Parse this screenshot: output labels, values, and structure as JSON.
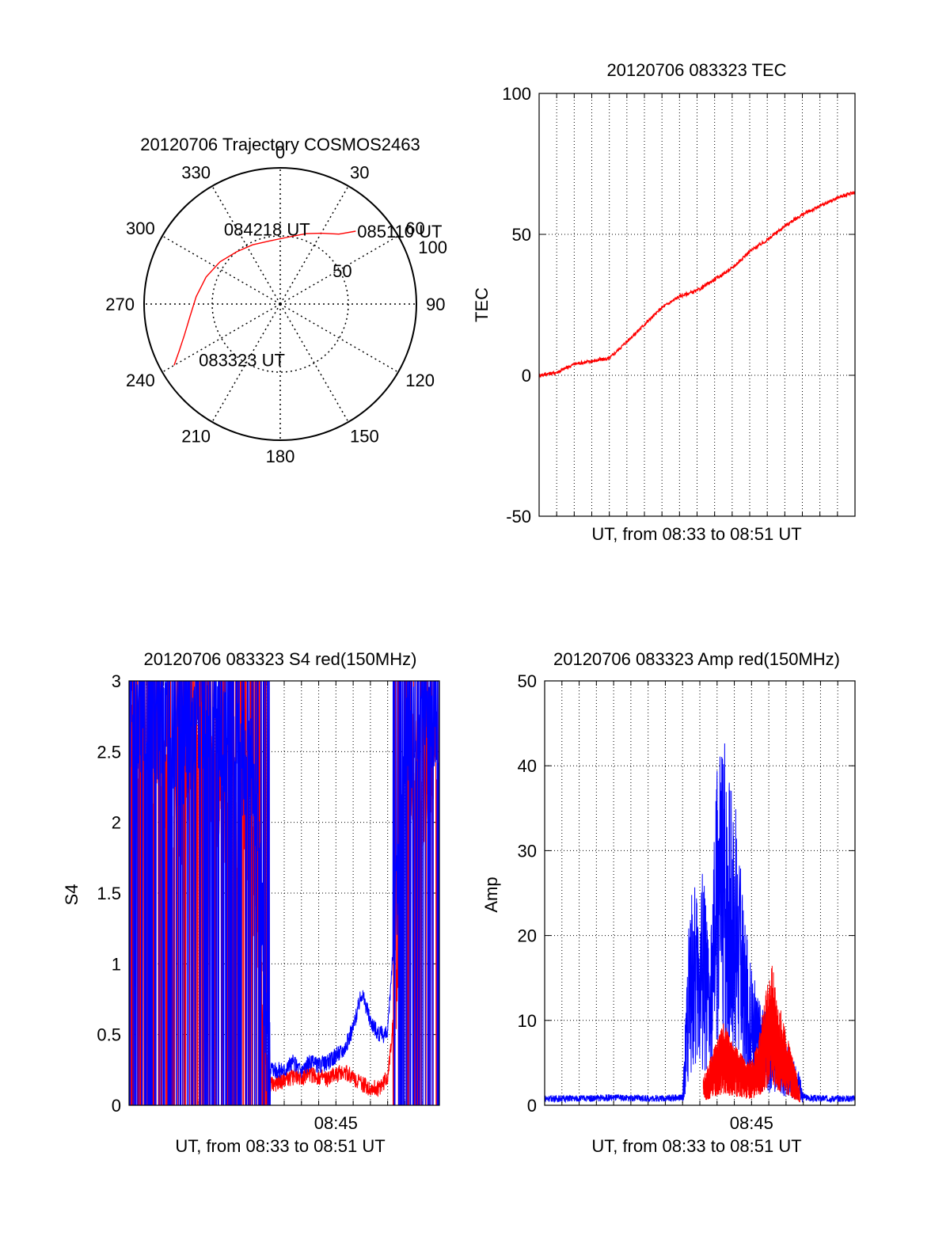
{
  "colors": {
    "red": "#ff0000",
    "blue": "#0000ff",
    "axis": "#000000",
    "grid": "#000000"
  },
  "chart_data": [
    {
      "type": "polar",
      "title": "20120706 Trajectory COSMOS2463",
      "azimuth_labels": [
        "0",
        "30",
        "60",
        "90",
        "120",
        "150",
        "180",
        "210",
        "240",
        "270",
        "300",
        "330"
      ],
      "radial_labels": [
        "50",
        "100"
      ],
      "grid": true,
      "series": [
        {
          "color": "red",
          "points": [
            {
              "az": 240,
              "el": 10
            },
            {
              "az": 245,
              "el": 18
            },
            {
              "az": 252,
              "el": 26
            },
            {
              "az": 262,
              "el": 33
            },
            {
              "az": 275,
              "el": 38
            },
            {
              "az": 290,
              "el": 42
            },
            {
              "az": 305,
              "el": 46
            },
            {
              "az": 320,
              "el": 50
            },
            {
              "az": 335,
              "el": 52
            },
            {
              "az": 350,
              "el": 53
            },
            {
              "az": 5,
              "el": 51
            },
            {
              "az": 20,
              "el": 45
            },
            {
              "az": 30,
              "el": 40
            },
            {
              "az": 40,
              "el": 33
            },
            {
              "az": 46,
              "el": 23
            }
          ]
        }
      ],
      "annotations": [
        {
          "text": "085110 UT",
          "az": 46,
          "el": 23
        },
        {
          "text": "084218 UT",
          "az": 345,
          "el": 75
        },
        {
          "text": "083323 UT",
          "az": 233,
          "el": 28
        }
      ]
    },
    {
      "type": "line",
      "title": "20120706 083323 TEC",
      "xlabel": "UT, from 08:33 to 08:51 UT",
      "ylabel": "TEC",
      "xlim": [
        0,
        18
      ],
      "ylim": [
        -50,
        100
      ],
      "yticks": [
        "-50",
        "0",
        "50",
        "100"
      ],
      "grid": true,
      "series": [
        {
          "color": "red",
          "x": [
            0,
            1,
            2,
            3,
            4,
            5,
            6,
            7,
            8,
            9,
            10,
            11,
            12,
            13,
            14,
            15,
            16,
            17,
            18
          ],
          "y": [
            0,
            1,
            4,
            5,
            6,
            12,
            18,
            24,
            28,
            30,
            34,
            38,
            44,
            48,
            53,
            57,
            60,
            63,
            65
          ]
        }
      ]
    },
    {
      "type": "line",
      "title": "20120706 083323 S4 red(150MHz)",
      "xlabel": "UT, from 08:33 to 08:51 UT",
      "ylabel": "S4",
      "xlim": [
        0,
        18
      ],
      "ylim": [
        0,
        3
      ],
      "yticks": [
        "0",
        "0.5",
        "1",
        "1.5",
        "2",
        "2.5",
        "3"
      ],
      "xticks": [
        {
          "x": 12,
          "label": "08:45"
        }
      ],
      "grid": true,
      "series": [
        {
          "color": "red",
          "x": [
            0,
            1,
            2,
            3,
            4,
            5,
            6,
            7,
            7.5,
            8,
            8.5,
            9,
            9.5,
            10,
            10.5,
            11,
            11.5,
            12,
            12.5,
            13,
            13.5,
            14,
            14.5,
            15,
            15.5,
            16,
            16.5,
            17,
            17.5,
            18
          ],
          "y": [
            2.6,
            2.4,
            2.2,
            2.0,
            2.4,
            2.2,
            2.0,
            1.8,
            1.3,
            0.15,
            0.15,
            0.18,
            0.2,
            0.2,
            0.22,
            0.2,
            0.18,
            0.22,
            0.24,
            0.2,
            0.15,
            0.12,
            0.12,
            0.2,
            0.8,
            2.4,
            2.4,
            2.2,
            2.3,
            2.4
          ]
        },
        {
          "color": "blue",
          "x": [
            0,
            1,
            2,
            3,
            4,
            5,
            6,
            7,
            7.5,
            8,
            8.5,
            9,
            9.5,
            10,
            10.5,
            11,
            11.5,
            12,
            12.5,
            13,
            13.5,
            14,
            14.5,
            15,
            15.5,
            16,
            16.5,
            17,
            17.5,
            18
          ],
          "y": [
            2.8,
            2.7,
            2.6,
            2.5,
            2.7,
            2.6,
            2.5,
            2.4,
            2.0,
            0.3,
            0.25,
            0.25,
            0.3,
            0.25,
            0.3,
            0.28,
            0.3,
            0.35,
            0.4,
            0.55,
            0.8,
            0.6,
            0.5,
            0.5,
            1.5,
            2.6,
            2.6,
            2.6,
            2.7,
            2.8
          ]
        }
      ]
    },
    {
      "type": "line",
      "title": "20120706 083323 Amp red(150MHz)",
      "xlabel": "UT, from 08:33 to 08:51 UT",
      "ylabel": "Amp",
      "xlim": [
        0,
        18
      ],
      "ylim": [
        0,
        50
      ],
      "yticks": [
        "0",
        "10",
        "20",
        "30",
        "40",
        "50"
      ],
      "xticks": [
        {
          "x": 12,
          "label": "08:45"
        }
      ],
      "grid": true,
      "series": [
        {
          "color": "blue",
          "x": [
            0,
            2,
            4,
            6,
            8,
            8.4,
            8.8,
            9.2,
            9.6,
            10,
            10.4,
            10.8,
            11.2,
            11.6,
            12,
            12.4,
            12.8,
            13.2,
            13.6,
            14,
            14.4,
            14.8,
            15,
            15.5,
            16,
            17,
            18
          ],
          "y": [
            0.8,
            0.8,
            0.9,
            0.8,
            0.9,
            22,
            24,
            26,
            16,
            38,
            41,
            36,
            30,
            20,
            15,
            12,
            10,
            9,
            8,
            7,
            5,
            4,
            1,
            0.8,
            0.8,
            0.8,
            0.8
          ]
        },
        {
          "color": "red",
          "x": [
            9.2,
            9.6,
            10,
            10.4,
            10.8,
            11.2,
            11.6,
            12,
            12.4,
            12.8,
            13.2,
            13.6,
            14,
            14.4,
            14.8
          ],
          "y": [
            3,
            5,
            7,
            9,
            7,
            6,
            5,
            5,
            7,
            12,
            15,
            11,
            8,
            5,
            2
          ]
        }
      ]
    }
  ]
}
